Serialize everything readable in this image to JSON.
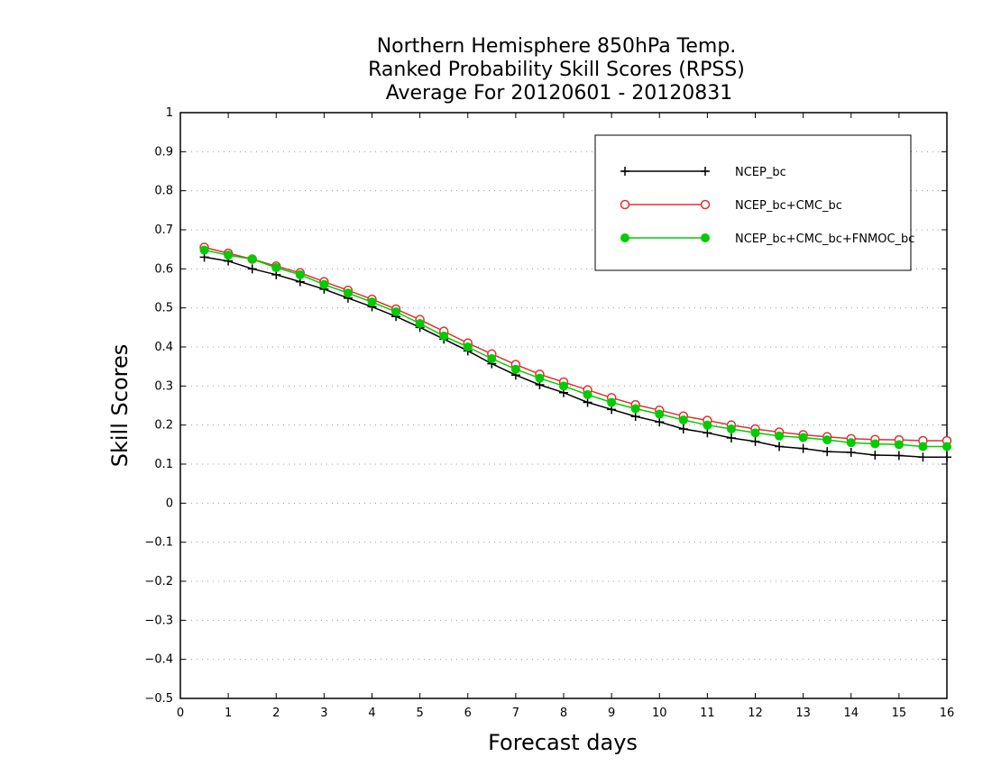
{
  "chart_data": {
    "type": "line",
    "title_lines": [
      "Northern Hemisphere 850hPa Temp.",
      "Ranked Probability Skill Scores (RPSS)",
      "Average For 20120601 - 20120831"
    ],
    "xlabel": "Forecast days",
    "ylabel": "Skill Scores",
    "xlim": [
      0,
      16
    ],
    "ylim": [
      -0.5,
      1
    ],
    "xticks": [
      "0",
      "1",
      "2",
      "3",
      "4",
      "5",
      "6",
      "7",
      "8",
      "9",
      "10",
      "11",
      "12",
      "13",
      "14",
      "15",
      "16"
    ],
    "yticks": [
      "−0.5",
      "−0.4",
      "−0.3",
      "−0.2",
      "−0.1",
      "0",
      "0.1",
      "0.2",
      "0.3",
      "0.4",
      "0.5",
      "0.6",
      "0.7",
      "0.8",
      "0.9",
      "1"
    ],
    "grid": "horizontal dotted",
    "legend_position": "top-right",
    "x": [
      0.5,
      1,
      1.5,
      2,
      2.5,
      3,
      3.5,
      4,
      4.5,
      5,
      5.5,
      6,
      6.5,
      7,
      7.5,
      8,
      8.5,
      9,
      9.5,
      10,
      10.5,
      11,
      11.5,
      12,
      12.5,
      13,
      13.5,
      14,
      14.5,
      15,
      15.5,
      16
    ],
    "series": [
      {
        "name": "NCEP_bc",
        "color": "#000000",
        "marker": "plus",
        "values": [
          0.63,
          0.62,
          0.6,
          0.585,
          0.567,
          0.548,
          0.525,
          0.503,
          0.478,
          0.45,
          0.42,
          0.39,
          0.357,
          0.328,
          0.303,
          0.283,
          0.258,
          0.24,
          0.222,
          0.208,
          0.19,
          0.18,
          0.167,
          0.158,
          0.145,
          0.14,
          0.132,
          0.13,
          0.123,
          0.122,
          0.118,
          0.118
        ]
      },
      {
        "name": "NCEP_bc+CMC_bc",
        "color": "#e03030",
        "marker": "open-circle",
        "values": [
          0.655,
          0.64,
          0.625,
          0.607,
          0.59,
          0.567,
          0.545,
          0.522,
          0.497,
          0.47,
          0.44,
          0.41,
          0.382,
          0.355,
          0.33,
          0.31,
          0.29,
          0.27,
          0.252,
          0.238,
          0.223,
          0.212,
          0.2,
          0.19,
          0.182,
          0.175,
          0.17,
          0.165,
          0.163,
          0.162,
          0.16,
          0.16
        ]
      },
      {
        "name": "NCEP_bc+CMC_bc+FNMOC_bc",
        "color": "#00cc00",
        "marker": "filled-circle",
        "values": [
          0.648,
          0.635,
          0.625,
          0.603,
          0.585,
          0.56,
          0.538,
          0.515,
          0.49,
          0.46,
          0.428,
          0.4,
          0.37,
          0.343,
          0.32,
          0.3,
          0.278,
          0.258,
          0.242,
          0.228,
          0.213,
          0.2,
          0.19,
          0.18,
          0.172,
          0.168,
          0.162,
          0.155,
          0.152,
          0.15,
          0.145,
          0.145
        ]
      }
    ]
  }
}
